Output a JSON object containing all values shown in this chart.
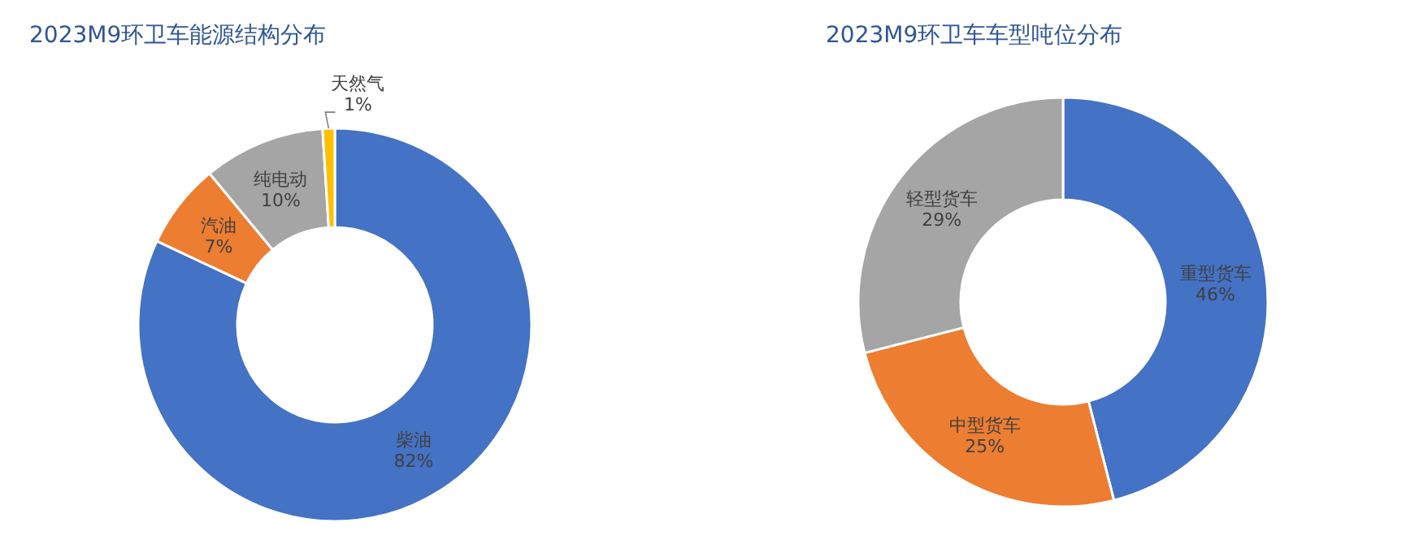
{
  "chart_data": [
    {
      "type": "donut",
      "title": "2023M9环卫车能源结构分布",
      "categories": [
        "柴油",
        "汽油",
        "纯电动",
        "天然气"
      ],
      "values": [
        82,
        7,
        10,
        1
      ],
      "value_labels": [
        "82%",
        "7%",
        "10%",
        "1%"
      ],
      "colors": [
        "#4472c4",
        "#ed7d31",
        "#a5a5a5",
        "#ffc000"
      ]
    },
    {
      "type": "donut",
      "title": "2023M9环卫车车型吨位分布",
      "categories": [
        "重型货车",
        "中型货车",
        "轻型货车"
      ],
      "values": [
        46,
        25,
        29
      ],
      "value_labels": [
        "46%",
        "25%",
        "29%"
      ],
      "colors": [
        "#4472c4",
        "#ed7d31",
        "#a5a5a5"
      ]
    }
  ]
}
